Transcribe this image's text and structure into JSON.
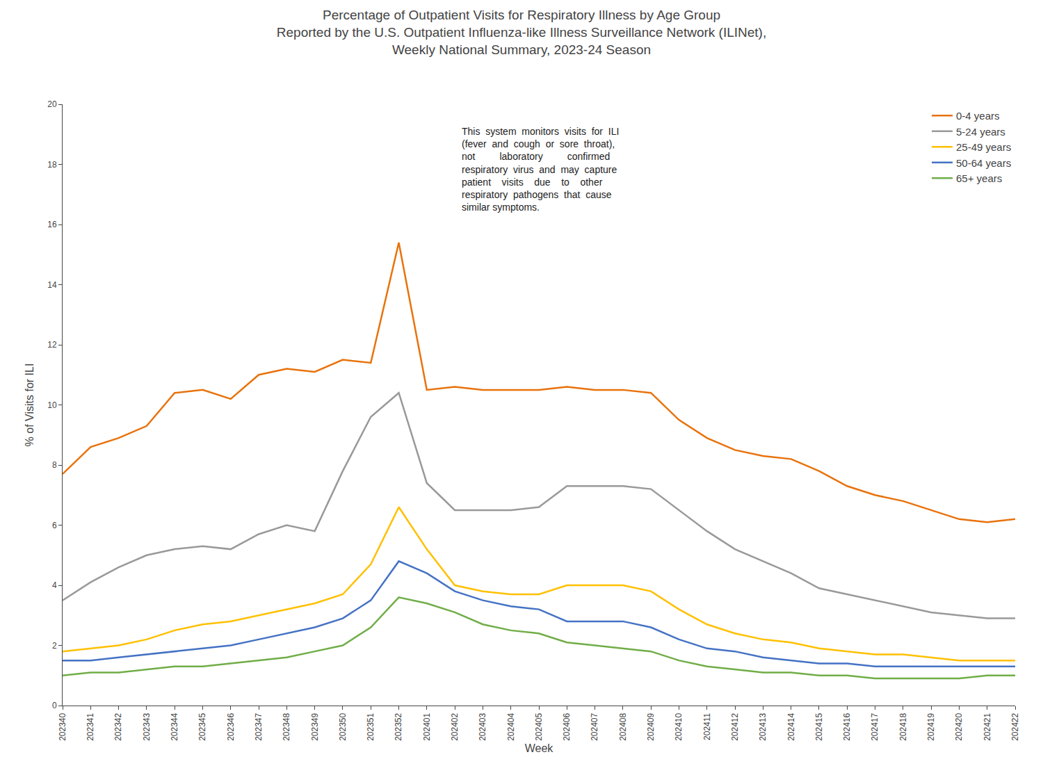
{
  "chart_data": {
    "type": "line",
    "title": "Percentage of Outpatient Visits for Respiratory Illness by Age Group\nReported by the U.S. Outpatient Influenza-like Illness Surveillance Network (ILINet),\nWeekly National Summary, 2023-24 Season",
    "xlabel": "Week",
    "ylabel": "% of Visits for ILI",
    "ylim": [
      0,
      20
    ],
    "yticks": [
      0,
      2,
      4,
      6,
      8,
      10,
      12,
      14,
      16,
      18,
      20
    ],
    "grid": false,
    "legend": "upper right",
    "categories": [
      "202340",
      "202341",
      "202342",
      "202343",
      "202344",
      "202345",
      "202346",
      "202347",
      "202348",
      "202349",
      "202350",
      "202351",
      "202352",
      "202401",
      "202402",
      "202403",
      "202404",
      "202405",
      "202406",
      "202407",
      "202408",
      "202409",
      "202410",
      "202411",
      "202412",
      "202413",
      "202414",
      "202415",
      "202416",
      "202417",
      "202418",
      "202419",
      "202420",
      "202421",
      "202422"
    ],
    "series": [
      {
        "name": "0-4 years",
        "color": "#E8720C",
        "values": [
          7.7,
          8.6,
          8.9,
          9.3,
          10.4,
          10.5,
          10.2,
          11.0,
          11.2,
          11.1,
          11.5,
          11.4,
          15.4,
          10.5,
          10.6,
          10.5,
          10.5,
          10.5,
          10.6,
          10.5,
          10.5,
          10.4,
          9.5,
          8.9,
          8.5,
          8.3,
          8.2,
          7.8,
          7.3,
          7.0,
          6.8,
          6.5,
          6.2,
          6.1,
          6.2
        ]
      },
      {
        "name": "5-24 years",
        "color": "#999999",
        "values": [
          3.5,
          4.1,
          4.6,
          5.0,
          5.2,
          5.3,
          5.2,
          5.7,
          6.0,
          5.8,
          7.8,
          9.6,
          10.4,
          7.4,
          6.5,
          6.5,
          6.5,
          6.6,
          7.3,
          7.3,
          7.3,
          7.2,
          6.5,
          5.8,
          5.2,
          4.8,
          4.4,
          3.9,
          3.7,
          3.5,
          3.3,
          3.1,
          3.0,
          2.9,
          2.9
        ]
      },
      {
        "name": "25-49 years",
        "color": "#FFC000",
        "values": [
          1.8,
          1.9,
          2.0,
          2.2,
          2.5,
          2.7,
          2.8,
          3.0,
          3.2,
          3.4,
          3.7,
          4.7,
          6.6,
          5.2,
          4.0,
          3.8,
          3.7,
          3.7,
          4.0,
          4.0,
          4.0,
          3.8,
          3.2,
          2.7,
          2.4,
          2.2,
          2.1,
          1.9,
          1.8,
          1.7,
          1.7,
          1.6,
          1.5,
          1.5,
          1.5
        ]
      },
      {
        "name": "50-64 years",
        "color": "#4472C4",
        "values": [
          1.5,
          1.5,
          1.6,
          1.7,
          1.8,
          1.9,
          2.0,
          2.2,
          2.4,
          2.6,
          2.9,
          3.5,
          4.8,
          4.4,
          3.8,
          3.5,
          3.3,
          3.2,
          2.8,
          2.8,
          2.8,
          2.6,
          2.2,
          1.9,
          1.8,
          1.6,
          1.5,
          1.4,
          1.4,
          1.3,
          1.3,
          1.3,
          1.3,
          1.3,
          1.3
        ]
      },
      {
        "name": "65+ years",
        "color": "#70AD47",
        "values": [
          1.0,
          1.1,
          1.1,
          1.2,
          1.3,
          1.3,
          1.4,
          1.5,
          1.6,
          1.8,
          2.0,
          2.6,
          3.6,
          3.4,
          3.1,
          2.7,
          2.5,
          2.4,
          2.1,
          2.0,
          1.9,
          1.8,
          1.5,
          1.3,
          1.2,
          1.1,
          1.1,
          1.0,
          1.0,
          0.9,
          0.9,
          0.9,
          0.9,
          1.0,
          1.0
        ]
      }
    ],
    "annotations": [
      "This  system  monitors  visits  for  ILI\n(fever  and  cough  or  sore  throat),\nnot         laboratory         confirmed\nrespiratory  virus  and  may  capture\npatient    visits    due    to    other\nrespiratory  pathogens  that  cause\nsimilar symptoms."
    ]
  }
}
